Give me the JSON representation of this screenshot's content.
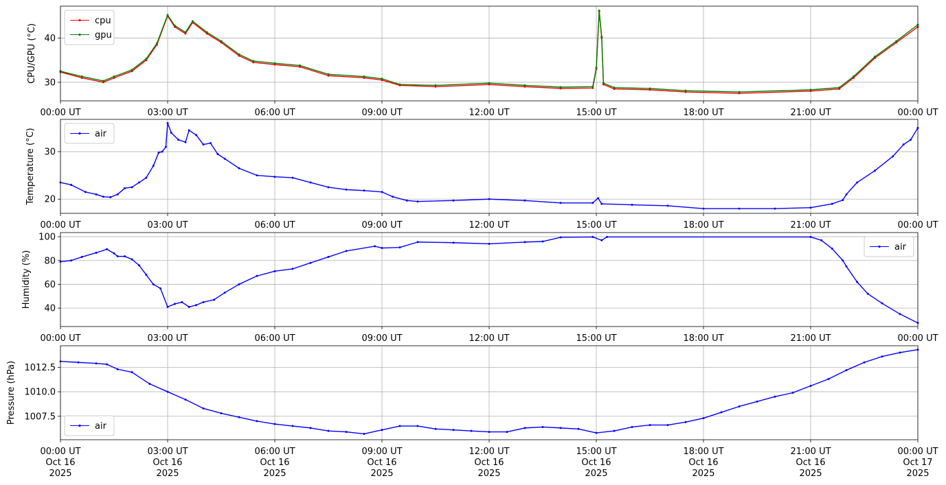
{
  "chart_data": [
    {
      "type": "line",
      "ylabel": "CPU/GPU (°C)",
      "xlim": [
        0,
        24
      ],
      "ylim": [
        25.8,
        47.2
      ],
      "yticks": [
        30,
        40
      ],
      "grid": true,
      "legend": "upper left",
      "x_tick_labels": [
        "00:00 UT",
        "03:00 UT",
        "06:00 UT",
        "09:00 UT",
        "12:00 UT",
        "15:00 UT",
        "18:00 UT",
        "21:00 UT",
        "00:00 UT"
      ],
      "series": [
        {
          "name": "cpu",
          "color": "#ff0000",
          "points": [
            [
              0,
              32.3
            ],
            [
              0.6,
              31.0
            ],
            [
              1.2,
              30.0
            ],
            [
              1.5,
              31.0
            ],
            [
              2.0,
              32.5
            ],
            [
              2.4,
              35.0
            ],
            [
              2.7,
              38.5
            ],
            [
              3.0,
              45.0
            ],
            [
              3.2,
              42.5
            ],
            [
              3.5,
              41.0
            ],
            [
              3.7,
              43.5
            ],
            [
              4.1,
              41.0
            ],
            [
              4.5,
              39.0
            ],
            [
              5.0,
              36.0
            ],
            [
              5.4,
              34.5
            ],
            [
              6.0,
              34.0
            ],
            [
              6.7,
              33.5
            ],
            [
              7.5,
              31.5
            ],
            [
              8.5,
              31.0
            ],
            [
              9.0,
              30.5
            ],
            [
              9.5,
              29.3
            ],
            [
              10.5,
              29.0
            ],
            [
              12.0,
              29.5
            ],
            [
              13.0,
              29.0
            ],
            [
              14.0,
              28.6
            ],
            [
              14.9,
              28.7
            ],
            [
              15.0,
              33.0
            ],
            [
              15.08,
              46.0
            ],
            [
              15.15,
              40.0
            ],
            [
              15.2,
              29.5
            ],
            [
              15.5,
              28.5
            ],
            [
              16.5,
              28.3
            ],
            [
              17.5,
              27.8
            ],
            [
              19.0,
              27.5
            ],
            [
              21.0,
              28.0
            ],
            [
              21.8,
              28.5
            ],
            [
              22.2,
              31.0
            ],
            [
              22.8,
              35.5
            ],
            [
              23.4,
              39.0
            ],
            [
              24,
              42.5
            ]
          ]
        },
        {
          "name": "gpu",
          "color": "#008000",
          "points": [
            [
              0,
              32.5
            ],
            [
              0.6,
              31.3
            ],
            [
              1.2,
              30.3
            ],
            [
              1.5,
              31.3
            ],
            [
              2.0,
              32.8
            ],
            [
              2.4,
              35.3
            ],
            [
              2.7,
              38.8
            ],
            [
              3.0,
              45.2
            ],
            [
              3.2,
              42.8
            ],
            [
              3.5,
              41.3
            ],
            [
              3.7,
              43.8
            ],
            [
              4.1,
              41.3
            ],
            [
              4.5,
              39.3
            ],
            [
              5.0,
              36.3
            ],
            [
              5.4,
              34.8
            ],
            [
              6.0,
              34.3
            ],
            [
              6.7,
              33.8
            ],
            [
              7.5,
              31.8
            ],
            [
              8.5,
              31.3
            ],
            [
              9.0,
              30.8
            ],
            [
              9.5,
              29.5
            ],
            [
              10.5,
              29.3
            ],
            [
              12.0,
              29.8
            ],
            [
              13.0,
              29.3
            ],
            [
              14.0,
              28.9
            ],
            [
              14.9,
              29.0
            ],
            [
              15.0,
              33.3
            ],
            [
              15.08,
              46.2
            ],
            [
              15.15,
              40.3
            ],
            [
              15.2,
              29.8
            ],
            [
              15.5,
              28.8
            ],
            [
              16.5,
              28.6
            ],
            [
              17.5,
              28.1
            ],
            [
              19.0,
              27.8
            ],
            [
              21.0,
              28.3
            ],
            [
              21.8,
              28.8
            ],
            [
              22.2,
              31.3
            ],
            [
              22.8,
              35.8
            ],
            [
              23.4,
              39.3
            ],
            [
              24,
              43.0
            ]
          ]
        }
      ]
    },
    {
      "type": "line",
      "ylabel": "Temperature (°C)",
      "xlim": [
        0,
        24
      ],
      "ylim": [
        17.0,
        36.8
      ],
      "yticks": [
        20,
        30
      ],
      "grid": true,
      "legend": "upper left",
      "x_tick_labels": [
        "00:00 UT",
        "03:00 UT",
        "06:00 UT",
        "09:00 UT",
        "12:00 UT",
        "15:00 UT",
        "18:00 UT",
        "21:00 UT",
        "00:00 UT"
      ],
      "series": [
        {
          "name": "air",
          "color": "#0000ff",
          "points": [
            [
              0,
              23.5
            ],
            [
              0.3,
              23.0
            ],
            [
              0.7,
              21.5
            ],
            [
              1.0,
              21.0
            ],
            [
              1.2,
              20.5
            ],
            [
              1.4,
              20.4
            ],
            [
              1.6,
              21.0
            ],
            [
              1.8,
              22.3
            ],
            [
              2.0,
              22.5
            ],
            [
              2.2,
              23.5
            ],
            [
              2.4,
              24.5
            ],
            [
              2.6,
              27.0
            ],
            [
              2.75,
              29.8
            ],
            [
              2.85,
              30.0
            ],
            [
              2.95,
              31.0
            ],
            [
              3.0,
              36.0
            ],
            [
              3.1,
              34.0
            ],
            [
              3.3,
              32.5
            ],
            [
              3.5,
              32.0
            ],
            [
              3.6,
              34.5
            ],
            [
              3.8,
              33.5
            ],
            [
              4.0,
              31.5
            ],
            [
              4.2,
              31.8
            ],
            [
              4.4,
              29.5
            ],
            [
              4.6,
              28.5
            ],
            [
              5.0,
              26.5
            ],
            [
              5.5,
              25.0
            ],
            [
              6.0,
              24.7
            ],
            [
              6.5,
              24.5
            ],
            [
              7.0,
              23.5
            ],
            [
              7.5,
              22.5
            ],
            [
              8.0,
              22.0
            ],
            [
              8.5,
              21.8
            ],
            [
              9.0,
              21.5
            ],
            [
              9.3,
              20.5
            ],
            [
              9.7,
              19.7
            ],
            [
              10.0,
              19.5
            ],
            [
              11.0,
              19.7
            ],
            [
              12.0,
              20.0
            ],
            [
              13.0,
              19.7
            ],
            [
              14.0,
              19.2
            ],
            [
              14.9,
              19.2
            ],
            [
              15.05,
              20.2
            ],
            [
              15.15,
              19.0
            ],
            [
              16.0,
              18.8
            ],
            [
              17.0,
              18.6
            ],
            [
              18.0,
              18.0
            ],
            [
              19.0,
              18.0
            ],
            [
              20.0,
              18.0
            ],
            [
              21.0,
              18.2
            ],
            [
              21.6,
              19.0
            ],
            [
              21.9,
              19.8
            ],
            [
              22.0,
              21.0
            ],
            [
              22.3,
              23.5
            ],
            [
              22.8,
              26.0
            ],
            [
              23.3,
              29.0
            ],
            [
              23.6,
              31.5
            ],
            [
              23.8,
              32.5
            ],
            [
              24,
              35.0
            ]
          ]
        }
      ]
    },
    {
      "type": "line",
      "ylabel": "Humidity (%)",
      "xlim": [
        0,
        24
      ],
      "ylim": [
        24.5,
        103.5
      ],
      "yticks": [
        40,
        60,
        80,
        100
      ],
      "grid": true,
      "legend": "upper right",
      "x_tick_labels": [
        "00:00 UT",
        "03:00 UT",
        "06:00 UT",
        "09:00 UT",
        "12:00 UT",
        "15:00 UT",
        "18:00 UT",
        "21:00 UT",
        "00:00 UT"
      ],
      "series": [
        {
          "name": "air",
          "color": "#0000ff",
          "points": [
            [
              0,
              79.0
            ],
            [
              0.3,
              80.0
            ],
            [
              0.6,
              83.0
            ],
            [
              1.0,
              86.5
            ],
            [
              1.3,
              89.5
            ],
            [
              1.5,
              86.0
            ],
            [
              1.6,
              83.5
            ],
            [
              1.8,
              83.5
            ],
            [
              2.0,
              81.0
            ],
            [
              2.2,
              76.0
            ],
            [
              2.4,
              68.0
            ],
            [
              2.6,
              60.0
            ],
            [
              2.8,
              56.5
            ],
            [
              3.0,
              41.0
            ],
            [
              3.2,
              43.5
            ],
            [
              3.4,
              45.0
            ],
            [
              3.6,
              41.0
            ],
            [
              3.8,
              42.5
            ],
            [
              4.0,
              45.0
            ],
            [
              4.3,
              47.0
            ],
            [
              4.6,
              53.0
            ],
            [
              5.0,
              60.0
            ],
            [
              5.5,
              67.0
            ],
            [
              6.0,
              71.0
            ],
            [
              6.5,
              73.0
            ],
            [
              7.0,
              78.0
            ],
            [
              7.5,
              83.0
            ],
            [
              8.0,
              88.0
            ],
            [
              8.8,
              92.0
            ],
            [
              9.0,
              90.5
            ],
            [
              9.5,
              91.0
            ],
            [
              10.0,
              95.5
            ],
            [
              11.0,
              95.0
            ],
            [
              12.0,
              94.0
            ],
            [
              13.0,
              95.5
            ],
            [
              13.5,
              96.0
            ],
            [
              14.0,
              99.5
            ],
            [
              14.9,
              99.8
            ],
            [
              15.15,
              97.0
            ],
            [
              15.3,
              99.8
            ],
            [
              21.0,
              99.8
            ],
            [
              21.3,
              97.0
            ],
            [
              21.6,
              90.0
            ],
            [
              21.9,
              80.0
            ],
            [
              22.0,
              75.0
            ],
            [
              22.3,
              62.0
            ],
            [
              22.6,
              52.0
            ],
            [
              23.0,
              44.0
            ],
            [
              23.5,
              35.0
            ],
            [
              24,
              27.5
            ]
          ]
        }
      ]
    },
    {
      "type": "line",
      "ylabel": "Pressure (hPa)",
      "xlim": [
        0,
        24
      ],
      "ylim": [
        1005.1,
        1014.7
      ],
      "yticks": [
        1007.5,
        1010.0,
        1012.5
      ],
      "yticklabels": [
        "1007.5",
        "1010.0",
        "1012.5"
      ],
      "grid": true,
      "legend": "lower left",
      "x_tick_labels": [
        "00:00 UT",
        "03:00 UT",
        "06:00 UT",
        "09:00 UT",
        "12:00 UT",
        "15:00 UT",
        "18:00 UT",
        "21:00 UT",
        "00:00 UT"
      ],
      "x_tick_labels_last_axis": [
        [
          "00:00 UT",
          "Oct 16",
          "2025"
        ],
        [
          "03:00 UT",
          "Oct 16",
          "2025"
        ],
        [
          "06:00 UT",
          "Oct 16",
          "2025"
        ],
        [
          "09:00 UT",
          "Oct 16",
          "2025"
        ],
        [
          "12:00 UT",
          "Oct 16",
          "2025"
        ],
        [
          "15:00 UT",
          "Oct 16",
          "2025"
        ],
        [
          "18:00 UT",
          "Oct 16",
          "2025"
        ],
        [
          "21:00 UT",
          "Oct 16",
          "2025"
        ],
        [
          "00:00 UT",
          "Oct 17",
          "2025"
        ]
      ],
      "series": [
        {
          "name": "air",
          "color": "#0000ff",
          "points": [
            [
              0,
              1013.1
            ],
            [
              0.5,
              1013.0
            ],
            [
              1.0,
              1012.9
            ],
            [
              1.3,
              1012.8
            ],
            [
              1.6,
              1012.3
            ],
            [
              2.0,
              1012.0
            ],
            [
              2.5,
              1010.8
            ],
            [
              3.0,
              1010.0
            ],
            [
              3.5,
              1009.2
            ],
            [
              4.0,
              1008.3
            ],
            [
              4.5,
              1007.8
            ],
            [
              5.0,
              1007.4
            ],
            [
              5.5,
              1007.0
            ],
            [
              6.0,
              1006.7
            ],
            [
              6.5,
              1006.5
            ],
            [
              7.0,
              1006.3
            ],
            [
              7.5,
              1006.0
            ],
            [
              8.0,
              1005.9
            ],
            [
              8.5,
              1005.7
            ],
            [
              9.0,
              1006.1
            ],
            [
              9.5,
              1006.5
            ],
            [
              10.0,
              1006.5
            ],
            [
              10.5,
              1006.2
            ],
            [
              11.0,
              1006.1
            ],
            [
              11.5,
              1006.0
            ],
            [
              12.0,
              1005.9
            ],
            [
              12.5,
              1005.9
            ],
            [
              13.0,
              1006.3
            ],
            [
              13.5,
              1006.4
            ],
            [
              14.0,
              1006.3
            ],
            [
              14.5,
              1006.2
            ],
            [
              15.0,
              1005.8
            ],
            [
              15.5,
              1006.0
            ],
            [
              16.0,
              1006.4
            ],
            [
              16.5,
              1006.6
            ],
            [
              17.0,
              1006.6
            ],
            [
              17.5,
              1006.9
            ],
            [
              18.0,
              1007.3
            ],
            [
              18.5,
              1007.9
            ],
            [
              19.0,
              1008.5
            ],
            [
              19.5,
              1009.0
            ],
            [
              20.0,
              1009.5
            ],
            [
              20.5,
              1009.9
            ],
            [
              21.0,
              1010.6
            ],
            [
              21.5,
              1011.3
            ],
            [
              22.0,
              1012.2
            ],
            [
              22.5,
              1013.0
            ],
            [
              23.0,
              1013.6
            ],
            [
              23.5,
              1014.0
            ],
            [
              24,
              1014.3
            ]
          ]
        }
      ]
    }
  ]
}
